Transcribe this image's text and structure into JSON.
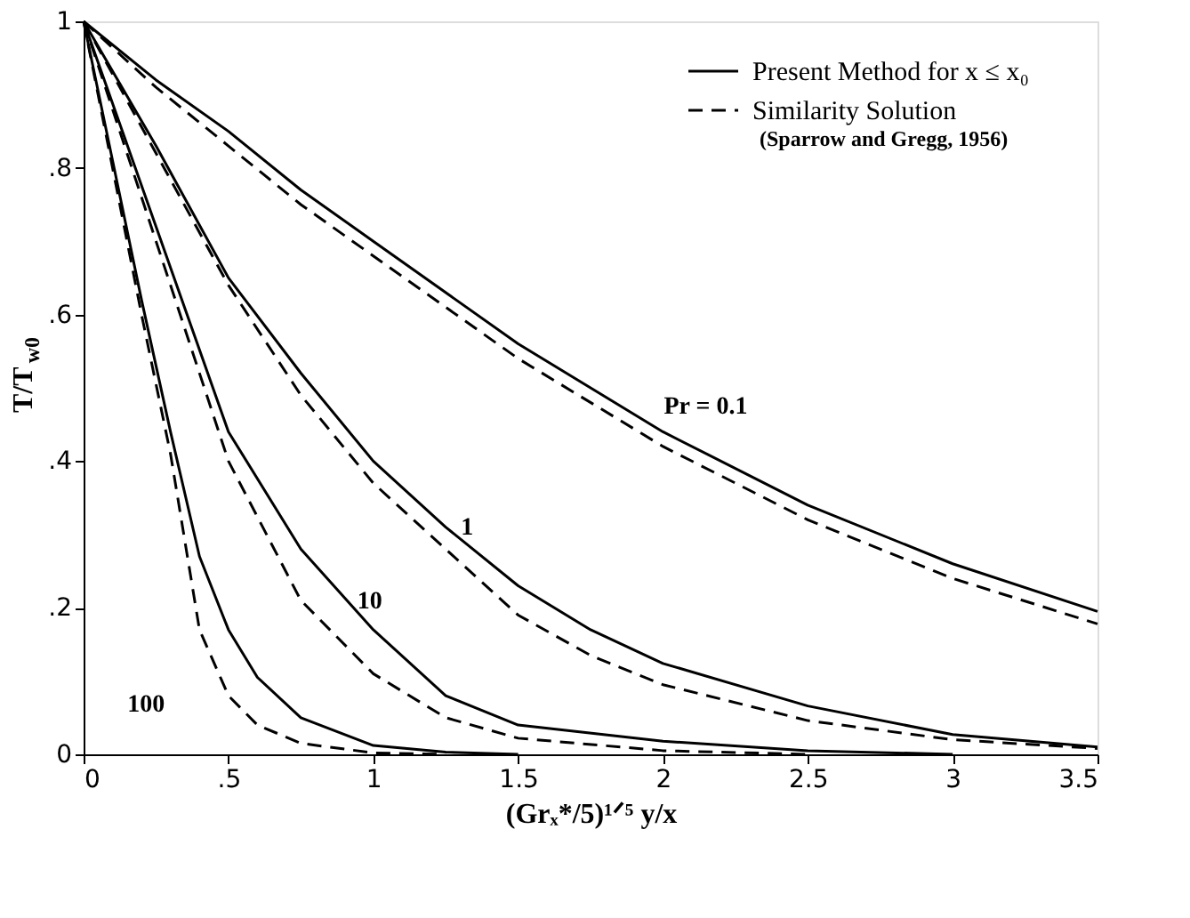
{
  "chart_data": {
    "type": "line",
    "xlabel": "(Grₓ*/5)¹ᐟ⁵ y/x",
    "ylabel": "T/T$_{w0}$",
    "xlim": [
      0,
      3.5
    ],
    "ylim": [
      0,
      1
    ],
    "xticks": [
      0,
      {
        "value": 0.5,
        "label": ".5"
      },
      1,
      1.5,
      2,
      2.5,
      3,
      3.5
    ],
    "yticks": [
      0,
      {
        "value": 0.2,
        "label": ".2"
      },
      {
        "value": 0.4,
        "label": ".4"
      },
      {
        "value": 0.6,
        "label": ".6"
      },
      {
        "value": 0.8,
        "label": ".8"
      },
      1
    ],
    "grid": false,
    "legend": "top right",
    "marker": "none",
    "series": [
      {
        "name": "Present Method for x ≤ x₀",
        "color": "#000000",
        "line_style": "solid",
        "x": [
          0,
          0.25,
          0.5,
          0.75,
          1,
          1.5,
          2,
          2.5,
          3,
          3.5
        ],
        "values": [
          1,
          0.92,
          0.85,
          0.77,
          0.7,
          0.56,
          0.44,
          0.34,
          0.26,
          0.195
        ]
      },
      {
        "name": "Similarity Solution",
        "color": "#000000",
        "line_style": "dashed",
        "x": [
          0,
          0.25,
          0.5,
          0.75,
          1,
          1.5,
          2,
          2.5,
          3,
          3.5
        ],
        "values": [
          1,
          0.91,
          0.83,
          0.75,
          0.68,
          0.54,
          0.42,
          0.32,
          0.24,
          0.178
        ]
      },
      {
        "color": "#000000",
        "line_style": "solid",
        "x": [
          0,
          0.25,
          0.5,
          0.75,
          1,
          1.25,
          1.5,
          1.75,
          2,
          2.5,
          3,
          3.5
        ],
        "values": [
          1,
          0.83,
          0.65,
          0.52,
          0.4,
          0.31,
          0.23,
          0.17,
          0.124,
          0.066,
          0.027,
          0.01
        ]
      },
      {
        "color": "#000000",
        "line_style": "dashed",
        "x": [
          0,
          0.25,
          0.5,
          0.75,
          1,
          1.25,
          1.5,
          1.75,
          2,
          2.5,
          3,
          3.5
        ],
        "values": [
          1,
          0.82,
          0.64,
          0.49,
          0.37,
          0.28,
          0.19,
          0.135,
          0.095,
          0.046,
          0.02,
          0.008
        ]
      },
      {
        "color": "#000000",
        "line_style": "solid",
        "x": [
          0,
          0.25,
          0.5,
          0.75,
          1,
          1.25,
          1.5,
          2,
          2.5,
          3
        ],
        "values": [
          1,
          0.72,
          0.44,
          0.28,
          0.17,
          0.08,
          0.04,
          0.018,
          0.005,
          0
        ]
      },
      {
        "color": "#000000",
        "line_style": "dashed",
        "x": [
          0,
          0.25,
          0.5,
          0.75,
          1,
          1.25,
          1.5,
          2,
          2.5
        ],
        "values": [
          1,
          0.7,
          0.4,
          0.21,
          0.11,
          0.05,
          0.022,
          0.005,
          0
        ]
      },
      {
        "color": "#000000",
        "line_style": "solid",
        "x": [
          0,
          0.1,
          0.2,
          0.3,
          0.4,
          0.5,
          0.6,
          0.75,
          1,
          1.25,
          1.5
        ],
        "values": [
          1,
          0.81,
          0.62,
          0.44,
          0.27,
          0.17,
          0.105,
          0.05,
          0.012,
          0.003,
          0
        ]
      },
      {
        "color": "#000000",
        "line_style": "dashed",
        "x": [
          0,
          0.1,
          0.2,
          0.3,
          0.4,
          0.5,
          0.6,
          0.75,
          1,
          1.25
        ],
        "values": [
          1,
          0.8,
          0.6,
          0.41,
          0.17,
          0.08,
          0.04,
          0.015,
          0.002,
          0
        ]
      }
    ],
    "annotations": [
      {
        "text": "Pr = 0.1",
        "x": 2,
        "y": 0.44
      },
      {
        "text": "1",
        "x": 1.25,
        "y": 0.31
      },
      {
        "text": "10",
        "x": 1,
        "y": 0.17
      },
      {
        "text": "100",
        "x": 0.4,
        "y": 0.17
      },
      "(Sparrow and Gregg, 1956)"
    ]
  }
}
